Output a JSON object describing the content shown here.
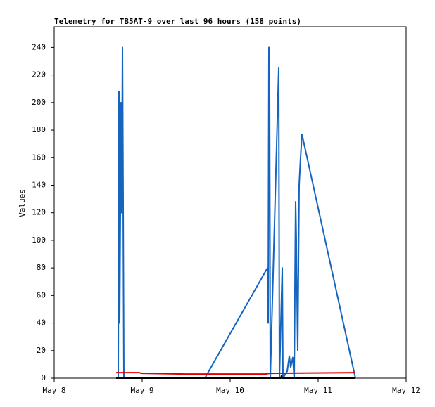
{
  "chart_data": {
    "type": "line",
    "title": "Telemetry for TB5AT-9 over last 96 hours (158 points)",
    "ylabel": "Values",
    "xlim": [
      8,
      12
    ],
    "xticks": [
      {
        "value": 8,
        "label": "May 8"
      },
      {
        "value": 9,
        "label": "May 9"
      },
      {
        "value": 10,
        "label": "May 10"
      },
      {
        "value": 11,
        "label": "May 11"
      },
      {
        "value": 12,
        "label": "May 12"
      }
    ],
    "ylim": [
      0,
      255
    ],
    "yticks": [
      0,
      20,
      40,
      60,
      80,
      100,
      120,
      140,
      160,
      180,
      200,
      220,
      240
    ],
    "grid": false,
    "series": [
      {
        "color": "#1565c0",
        "x": [
          8.728,
          8.736,
          8.744,
          8.76,
          8.768,
          8.776,
          8.784,
          8.792,
          9.712,
          10.424,
          10.432,
          10.44,
          10.448,
          10.456,
          10.552,
          10.56,
          10.592,
          10.6,
          10.648,
          10.672,
          10.688,
          10.712,
          10.728,
          10.744,
          10.752,
          10.768,
          10.784,
          10.8,
          10.816,
          11.424
        ],
        "values": [
          0,
          208,
          40,
          200,
          120,
          240,
          128,
          0,
          0,
          80,
          40,
          240,
          208,
          0,
          225,
          0,
          80,
          0,
          5,
          16,
          8,
          15,
          0,
          128,
          100,
          20,
          140,
          160,
          177,
          0
        ]
      },
      {
        "color": "#e00000",
        "x": [
          8.704,
          8.96,
          9.0,
          9.5,
          10.4,
          10.45,
          11.424
        ],
        "values": [
          4,
          4,
          3.5,
          3,
          3,
          3.5,
          4
        ]
      },
      {
        "color": "#000000",
        "x": [
          8.704,
          10.576,
          10.584,
          10.592,
          11.424
        ],
        "values": [
          0,
          0,
          2,
          0,
          0
        ]
      }
    ]
  }
}
